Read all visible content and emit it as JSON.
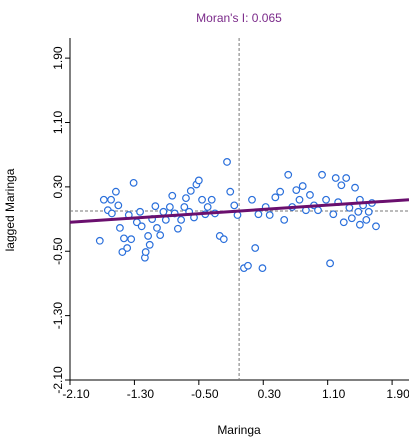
{
  "chart_data": {
    "type": "scatter",
    "title": "Moran's I: 0.065",
    "x_label": "Maringa",
    "y_label": "lagged Maringa",
    "xlim": [
      -2.1,
      2.11
    ],
    "ylim": [
      -2.1,
      2.15
    ],
    "xticks": [
      {
        "value": -2.1,
        "label": "-2.10"
      },
      {
        "value": -1.3,
        "label": "-1.30"
      },
      {
        "value": -0.5,
        "label": "-0.50"
      },
      {
        "value": 0.3,
        "label": "0.30"
      },
      {
        "value": 1.1,
        "label": "1.10"
      },
      {
        "value": 1.9,
        "label": "1.90"
      }
    ],
    "yticks": [
      {
        "value": -2.1,
        "label": "-2.10"
      },
      {
        "value": -1.3,
        "label": "-1.30"
      },
      {
        "value": -0.5,
        "label": "-0.50"
      },
      {
        "value": 0.3,
        "label": "0.30"
      },
      {
        "value": 1.1,
        "label": "1.10"
      },
      {
        "value": 1.9,
        "label": "1.90"
      }
    ],
    "ref_lines": {
      "x": 0,
      "y": 0
    },
    "fit_line": {
      "x": [
        -2.1,
        2.11
      ],
      "y": [
        -0.14,
        0.14
      ],
      "color": "#6a0f6e"
    },
    "point_color": "#2a6fdb",
    "title_color": "#7b2a8a",
    "x": [
      -1.73,
      -1.68,
      -1.63,
      -1.59,
      -1.58,
      -1.53,
      -1.5,
      -1.48,
      -1.45,
      -1.43,
      -1.39,
      -1.37,
      -1.34,
      -1.31,
      -1.27,
      -1.23,
      -1.21,
      -1.17,
      -1.16,
      -1.13,
      -1.11,
      -1.08,
      -1.04,
      -1.02,
      -0.98,
      -0.94,
      -0.91,
      -0.86,
      -0.83,
      -0.8,
      -0.76,
      -0.72,
      -0.68,
      -0.66,
      -0.62,
      -0.6,
      -0.56,
      -0.53,
      -0.5,
      -0.46,
      -0.42,
      -0.39,
      -0.34,
      -0.3,
      -0.24,
      -0.19,
      -0.15,
      -0.11,
      -0.06,
      -0.02,
      0.06,
      0.11,
      0.16,
      0.2,
      0.24,
      0.29,
      0.33,
      0.38,
      0.45,
      0.51,
      0.56,
      0.61,
      0.66,
      0.71,
      0.75,
      0.79,
      0.83,
      0.88,
      0.93,
      0.98,
      1.03,
      1.08,
      1.13,
      1.17,
      1.2,
      1.23,
      1.27,
      1.3,
      1.33,
      1.37,
      1.4,
      1.44,
      1.48,
      1.5,
      1.54,
      1.58,
      1.61,
      1.65,
      1.7,
      1.5
    ],
    "y": [
      -0.37,
      0.14,
      0.01,
      0.14,
      -0.03,
      0.24,
      0.07,
      -0.21,
      -0.51,
      -0.34,
      -0.46,
      -0.05,
      -0.35,
      0.35,
      -0.14,
      -0.01,
      -0.19,
      -0.58,
      -0.51,
      -0.31,
      -0.42,
      -0.1,
      0.06,
      -0.21,
      -0.3,
      -0.01,
      -0.11,
      0.05,
      0.19,
      -0.03,
      -0.22,
      -0.11,
      0.05,
      0.16,
      -0.01,
      0.25,
      -0.08,
      0.33,
      0.38,
      0.14,
      -0.04,
      0.05,
      0.14,
      -0.03,
      -0.31,
      -0.35,
      0.61,
      0.24,
      0.07,
      -0.05,
      -0.71,
      -0.68,
      0.14,
      -0.46,
      -0.04,
      -0.71,
      0.05,
      -0.05,
      0.17,
      0.24,
      -0.11,
      0.45,
      0.05,
      0.26,
      0.14,
      0.31,
      0.01,
      0.2,
      0.07,
      0.01,
      0.45,
      0.14,
      -0.65,
      -0.04,
      0.41,
      0.11,
      0.32,
      -0.14,
      0.41,
      0.04,
      -0.09,
      0.29,
      -0.01,
      -0.17,
      0.07,
      -0.11,
      -0.01,
      0.1,
      -0.19,
      0.14
    ]
  }
}
